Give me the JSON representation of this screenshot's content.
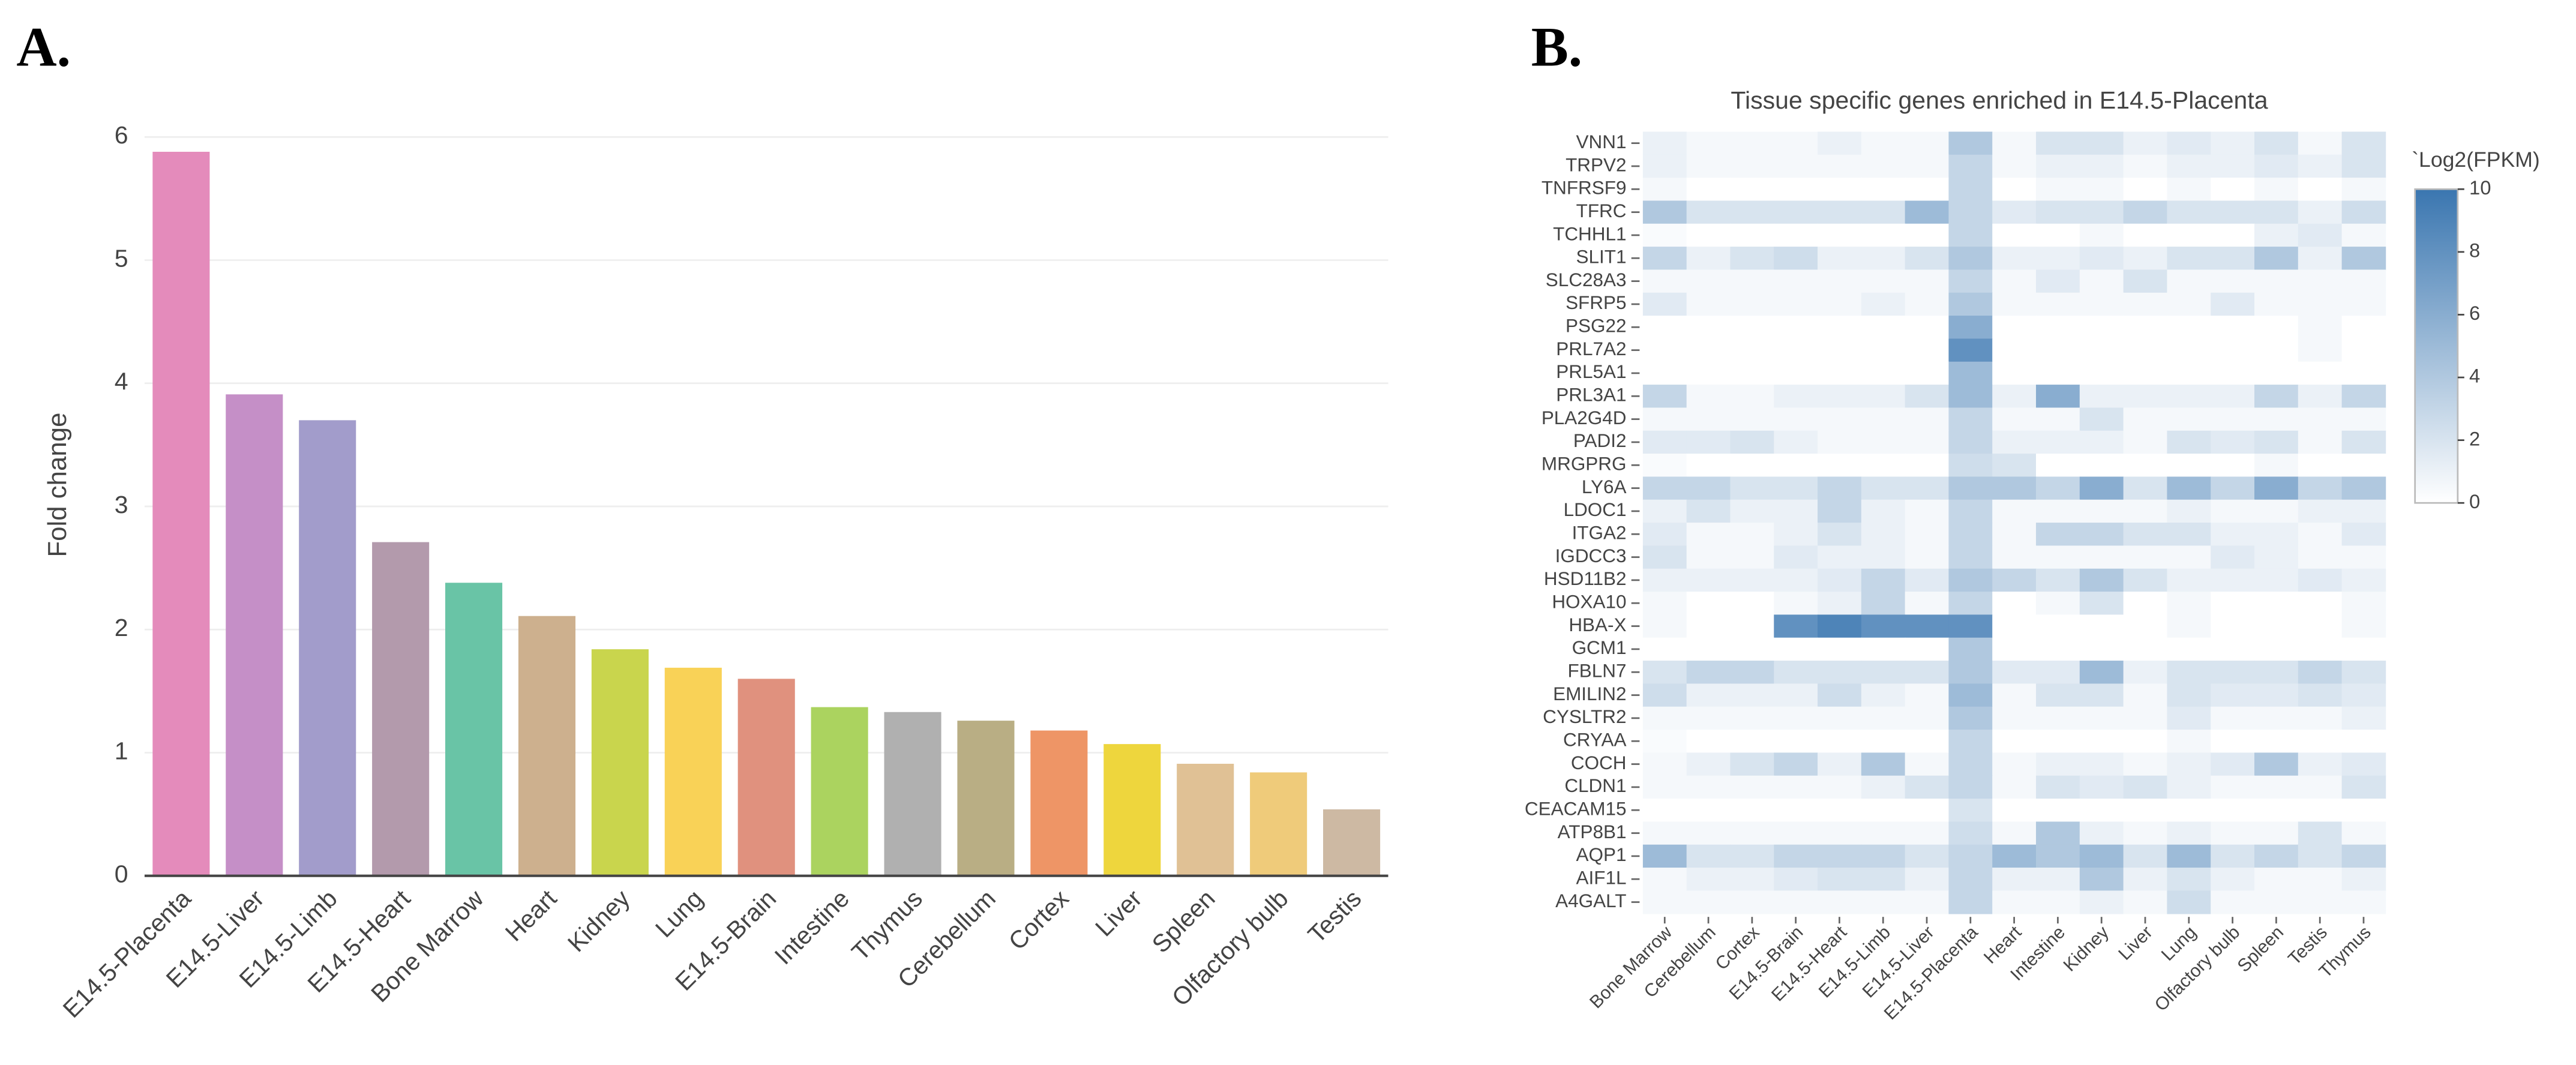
{
  "chart_data": [
    {
      "type": "bar",
      "panel_label": "A.",
      "ylabel": "Fold change",
      "categories": [
        "E14.5-Placenta",
        "E14.5-Liver",
        "E14.5-Limb",
        "E14.5-Heart",
        "Bone Marrow",
        "Heart",
        "Kidney",
        "Lung",
        "E14.5-Brain",
        "Intestine",
        "Thymus",
        "Cerebellum",
        "Cortex",
        "Liver",
        "Spleen",
        "Olfactory bulb",
        "Testis"
      ],
      "values": [
        5.88,
        3.91,
        3.7,
        2.71,
        2.38,
        2.11,
        1.84,
        1.69,
        1.6,
        1.37,
        1.33,
        1.26,
        1.18,
        1.07,
        0.91,
        0.84,
        0.54
      ],
      "colors": [
        "#e48bbb",
        "#c58fc7",
        "#a29ccb",
        "#b39aac",
        "#69c4a6",
        "#cdb08e",
        "#c9d54d",
        "#f9d257",
        "#e0917e",
        "#abd35f",
        "#b0b0b0",
        "#b9ae84",
        "#ee9566",
        "#eed63d",
        "#e0c195",
        "#efcb7a",
        "#cdb9a3"
      ],
      "ylim": [
        0,
        6.15
      ],
      "yticks": [
        0,
        1,
        2,
        3,
        4,
        5,
        6
      ],
      "grid": true
    },
    {
      "type": "heatmap",
      "panel_label": "B.",
      "title": "Tissue specific genes enriched in E14.5-Placenta",
      "categories": [
        "Bone Marrow",
        "Cerebellum",
        "Cortex",
        "E14.5-Brain",
        "E14.5-Heart",
        "E14.5-Limb",
        "E14.5-Liver",
        "E14.5-Placenta",
        "Heart",
        "Intestine",
        "Kidney",
        "Liver",
        "Lung",
        "Olfactory bulb",
        "Spleen",
        "Testis",
        "Thymus"
      ],
      "rows": [
        "VNN1",
        "TRPV2",
        "TNFRSF9",
        "TFRC",
        "TCHHL1",
        "SLIT1",
        "SLC28A3",
        "SFRP5",
        "PSG22",
        "PRL7A2",
        "PRL5A1",
        "PRL3A1",
        "PLA2G4D",
        "PADI2",
        "MRGPRG",
        "LY6A",
        "LDOC1",
        "ITGA2",
        "IGDCC3",
        "HSD11B2",
        "HOXA10",
        "HBA-X",
        "GCM1",
        "FBLN7",
        "EMILIN2",
        "CYSLTR2",
        "CRYAA",
        "COCH",
        "CLDN1",
        "CEACAM15",
        "ATP8B1",
        "AQP1",
        "AIF1L",
        "A4GALT"
      ],
      "z": [
        [
          1,
          0.5,
          0.5,
          0.5,
          1,
          0.5,
          0.5,
          4,
          0.5,
          2,
          2,
          1,
          1.5,
          1,
          2,
          0.5,
          2
        ],
        [
          1,
          0.5,
          0.5,
          0.5,
          0.5,
          0.5,
          0.5,
          3,
          0.5,
          1,
          1,
          0.5,
          1,
          1,
          1.5,
          1,
          2
        ],
        [
          0.5,
          0,
          0,
          0,
          0,
          0,
          0,
          3,
          0,
          0.5,
          0.5,
          0,
          0.5,
          0,
          0.5,
          0,
          0.5
        ],
        [
          4,
          2,
          2,
          2,
          2,
          2,
          5,
          3,
          1.5,
          2,
          2,
          3,
          2,
          2,
          2,
          1,
          2.5
        ],
        [
          0.3,
          0,
          0,
          0,
          0,
          0,
          0,
          3,
          0,
          0,
          0.5,
          0,
          0,
          0,
          1,
          1.5,
          0.5
        ],
        [
          3,
          1,
          2,
          2.5,
          1,
          1,
          2,
          4,
          1,
          1,
          1.5,
          1,
          2,
          2,
          4,
          1,
          4
        ],
        [
          0.5,
          0.5,
          0.5,
          0.5,
          0.5,
          0.5,
          0.5,
          3,
          0.5,
          1.5,
          0.5,
          2,
          0.5,
          0.5,
          0.5,
          0.5,
          0.5
        ],
        [
          1.5,
          0.5,
          0.5,
          0.5,
          0.5,
          1,
          0.5,
          4,
          0.5,
          0.5,
          0.5,
          0.5,
          0.5,
          1.5,
          0.5,
          0.5,
          0.5
        ],
        [
          0,
          0,
          0,
          0,
          0,
          0,
          0,
          6,
          0,
          0,
          0,
          0,
          0,
          0,
          0,
          0.5,
          0
        ],
        [
          0,
          0,
          0,
          0,
          0,
          0,
          0,
          8,
          0,
          0,
          0,
          0,
          0,
          0,
          0,
          0.5,
          0
        ],
        [
          0,
          0,
          0,
          0,
          0,
          0,
          0,
          5,
          0,
          0,
          0,
          0,
          0,
          0,
          0,
          0,
          0
        ],
        [
          3,
          0.5,
          0.5,
          1,
          1,
          1,
          2,
          5,
          1,
          6,
          1,
          1,
          1,
          1,
          3,
          1,
          3
        ],
        [
          0.5,
          0.5,
          0.5,
          0.5,
          0.5,
          0.5,
          0.5,
          3,
          0.5,
          0.5,
          2,
          0.5,
          0.5,
          0.5,
          0.5,
          0.5,
          0.5
        ],
        [
          1.5,
          1.5,
          2,
          1,
          0.5,
          0.5,
          0.5,
          3,
          1,
          1,
          1,
          0.5,
          2,
          1.5,
          2,
          0.5,
          2
        ],
        [
          0.3,
          0,
          0,
          0,
          0,
          0,
          0,
          2.5,
          2,
          0,
          0,
          0,
          0,
          0,
          0.5,
          0,
          0
        ],
        [
          3,
          3,
          2,
          2,
          3,
          2,
          2,
          4,
          4,
          3,
          6,
          2,
          5,
          3,
          6,
          3,
          4
        ],
        [
          1,
          2,
          1,
          1,
          3,
          1,
          0.5,
          3,
          0.5,
          0.5,
          0.5,
          0.5,
          1,
          0.5,
          0.5,
          1,
          1
        ],
        [
          1.5,
          0.5,
          0.5,
          1,
          2,
          1,
          0.5,
          3,
          0.5,
          3,
          3,
          2,
          2,
          1,
          1,
          0.5,
          1.5
        ],
        [
          2,
          0.5,
          0.5,
          1.5,
          1,
          1,
          0.5,
          3,
          0.5,
          0.5,
          0.5,
          0.5,
          0.5,
          1.5,
          1,
          0.5,
          0.5
        ],
        [
          1,
          1,
          1,
          1,
          1.5,
          3,
          1.5,
          4,
          3,
          2,
          4,
          2,
          1,
          1,
          1,
          1.5,
          1
        ],
        [
          0.5,
          0,
          0,
          0.5,
          1,
          3,
          0.5,
          3,
          0,
          0.5,
          2,
          0,
          0.5,
          0,
          0,
          0,
          0.5
        ],
        [
          0.5,
          0,
          0,
          8,
          9,
          8,
          8,
          8,
          0,
          0,
          0,
          0,
          0.5,
          0,
          0,
          0,
          0.5
        ],
        [
          0,
          0,
          0,
          0,
          0,
          0,
          0,
          4,
          0,
          0,
          0,
          0,
          0,
          0,
          0,
          0,
          0
        ],
        [
          2,
          3,
          3,
          2,
          2,
          2,
          2,
          4,
          1.5,
          1.5,
          5,
          1,
          2,
          2,
          2,
          3,
          2
        ],
        [
          2.5,
          1,
          1,
          1,
          2.5,
          1,
          0.5,
          5,
          0.5,
          2,
          2,
          0.5,
          2,
          1.5,
          1.5,
          2,
          1.5
        ],
        [
          0.5,
          0.5,
          0.5,
          0.5,
          0.5,
          0.5,
          0.5,
          4,
          0.5,
          0.5,
          0.5,
          0.5,
          1.5,
          0.5,
          0.5,
          0.5,
          1
        ],
        [
          0.3,
          0,
          0,
          0,
          0,
          0,
          0,
          3,
          0,
          0,
          0,
          0,
          0.5,
          0,
          0,
          0,
          0
        ],
        [
          0.5,
          1,
          2,
          3,
          1,
          4,
          0.5,
          3,
          0.5,
          1,
          1,
          0.5,
          1,
          1.5,
          4,
          1,
          1.5
        ],
        [
          0.5,
          0.5,
          0.5,
          0.5,
          0.5,
          1,
          2,
          3,
          0.5,
          2,
          1.5,
          2,
          1,
          0.5,
          0.5,
          0.5,
          2
        ],
        [
          0,
          0,
          0,
          0,
          0,
          0,
          0,
          2,
          0,
          0,
          0,
          0,
          0,
          0,
          0,
          0,
          0
        ],
        [
          0.5,
          0.5,
          0.5,
          0.5,
          0.5,
          0.5,
          0.5,
          2.5,
          0.5,
          4,
          1,
          0.5,
          1,
          0.5,
          0.5,
          2,
          0.5
        ],
        [
          5,
          2,
          2,
          3,
          3,
          3,
          2,
          3,
          5,
          4,
          5,
          2,
          5,
          2,
          3,
          2,
          3
        ],
        [
          0.5,
          1,
          1,
          1.5,
          2,
          2,
          1,
          3,
          1,
          1,
          4,
          1,
          2,
          1,
          0.5,
          0.5,
          1
        ],
        [
          0.5,
          0.5,
          0.5,
          0.5,
          0.5,
          0.5,
          0.5,
          3,
          0.5,
          0.5,
          1,
          0.5,
          2.5,
          0.5,
          0.5,
          0.5,
          0.5
        ]
      ],
      "zlim": [
        0,
        10
      ],
      "colorscale": [
        "#ffffff",
        "#3a76b0"
      ],
      "colorbar_title": "`Log2(FPKM)",
      "colorbar_ticks": [
        0,
        2,
        4,
        6,
        8,
        10
      ]
    }
  ]
}
